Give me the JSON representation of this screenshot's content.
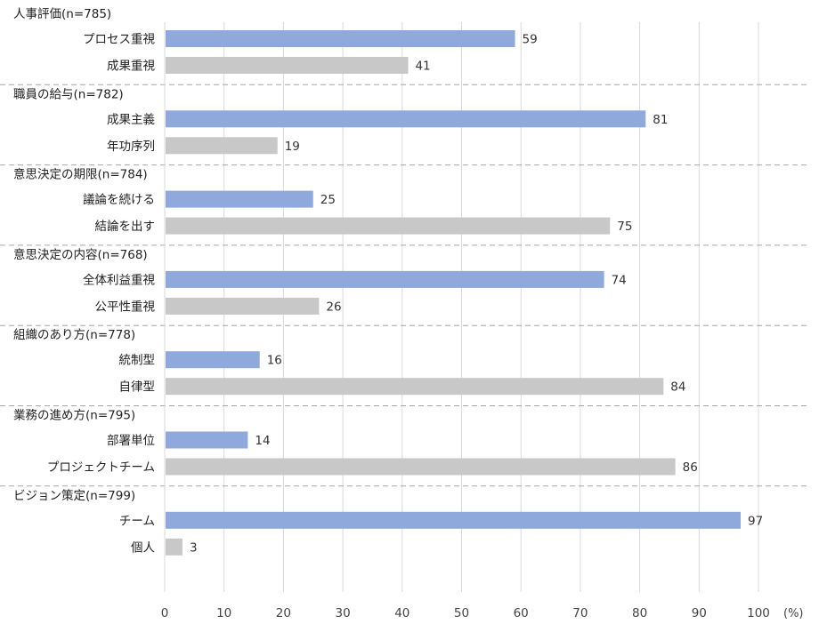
{
  "chart_data": {
    "type": "bar",
    "orientation": "horizontal",
    "title": "",
    "xlabel": "",
    "ylabel": "",
    "unit": "(%)",
    "xlim": [
      0,
      100
    ],
    "x_ticks": [
      0,
      10,
      20,
      30,
      40,
      50,
      60,
      70,
      80,
      90,
      100
    ],
    "grid": true,
    "colors": {
      "first": "#8fa9dc",
      "second": "#c8c8c8",
      "grid": "#d9d9d9",
      "separator": "#a6a6a6"
    },
    "groups": [
      {
        "label": "人事評価(n=785)",
        "items": [
          {
            "label": "プロセス重視",
            "value": 59
          },
          {
            "label": "成果重視",
            "value": 41
          }
        ]
      },
      {
        "label": "職員の給与(n=782)",
        "items": [
          {
            "label": "成果主義",
            "value": 81
          },
          {
            "label": "年功序列",
            "value": 19
          }
        ]
      },
      {
        "label": "意思決定の期限(n=784)",
        "items": [
          {
            "label": "議論を続ける",
            "value": 25
          },
          {
            "label": "結論を出す",
            "value": 75
          }
        ]
      },
      {
        "label": "意思決定の内容(n=768)",
        "items": [
          {
            "label": "全体利益重視",
            "value": 74
          },
          {
            "label": "公平性重視",
            "value": 26
          }
        ]
      },
      {
        "label": "組織のあり方(n=778)",
        "items": [
          {
            "label": "統制型",
            "value": 16
          },
          {
            "label": "自律型",
            "value": 84
          }
        ]
      },
      {
        "label": "業務の進め方(n=795)",
        "items": [
          {
            "label": "部署単位",
            "value": 14
          },
          {
            "label": "プロジェクトチーム",
            "value": 86
          }
        ]
      },
      {
        "label": "ビジョン策定(n=799)",
        "items": [
          {
            "label": "チーム",
            "value": 97
          },
          {
            "label": "個人",
            "value": 3
          }
        ]
      }
    ]
  }
}
